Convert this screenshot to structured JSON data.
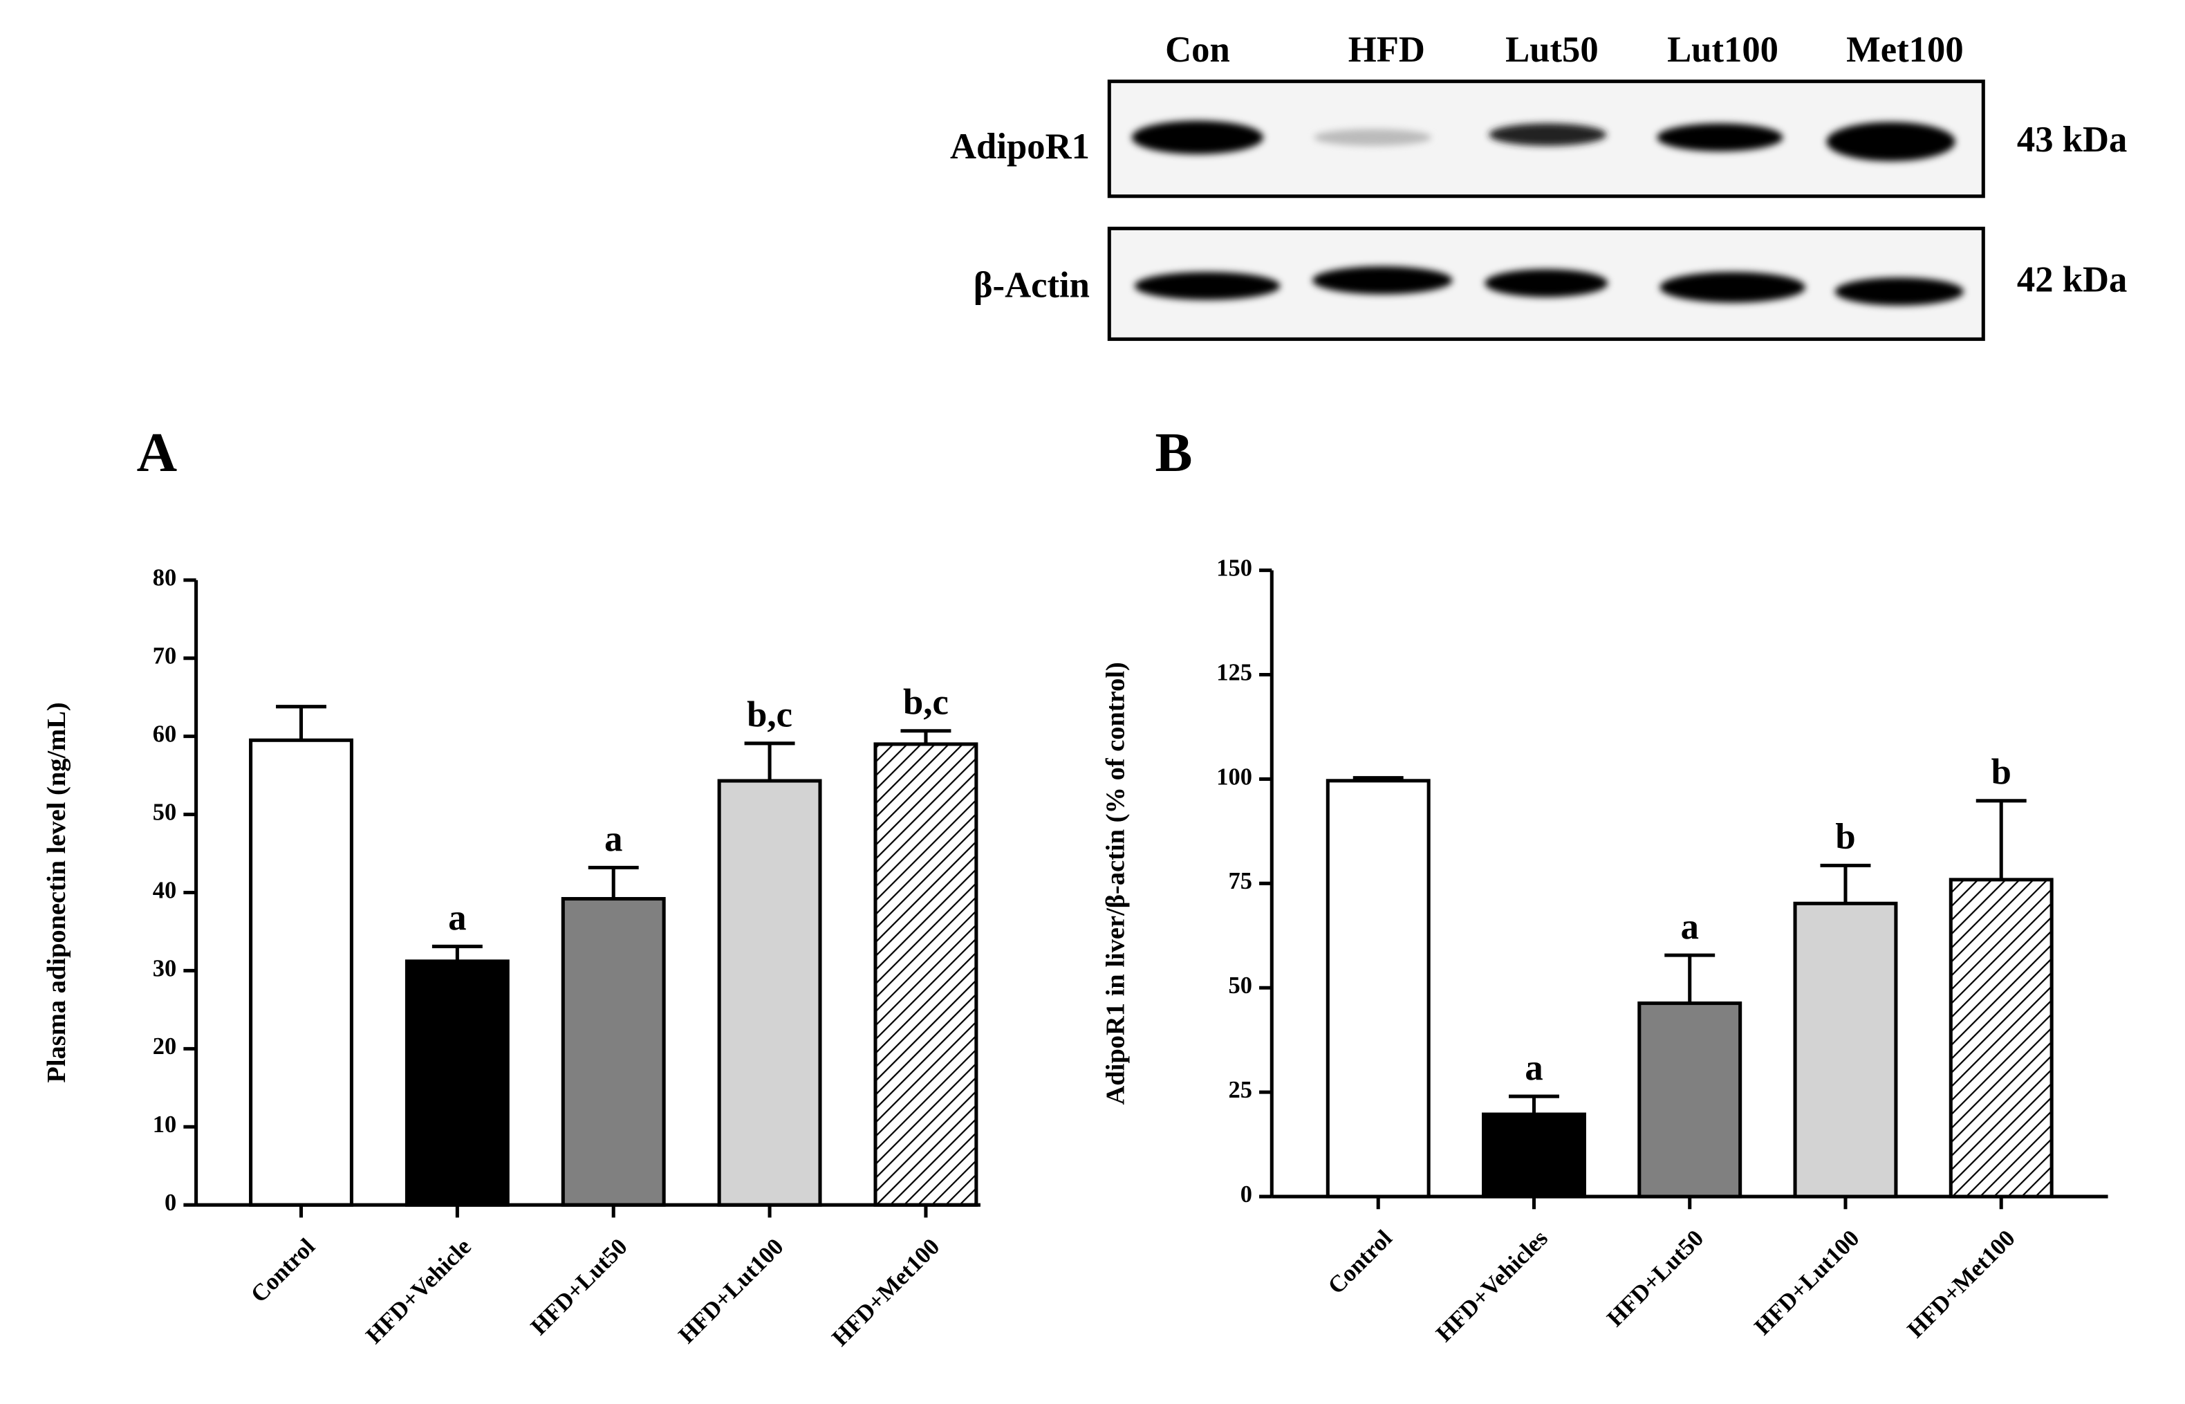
{
  "blot": {
    "lanes": [
      "Con",
      "HFD",
      "Lut50",
      "Lut100",
      "Met100"
    ],
    "rows": [
      {
        "label": "AdipoR1",
        "size": "43 kDa"
      },
      {
        "label": "β-Actin",
        "size": "42 kDa"
      }
    ]
  },
  "chart_data": [
    {
      "type": "bar",
      "panel": "A",
      "ylabel": "Plasma adiponectin level (ng/mL)",
      "categories": [
        "Control",
        "HFD+Vehicle",
        "HFD+Lut50",
        "HFD+Lut100",
        "HFD+Met100"
      ],
      "values": [
        59.5,
        31.2,
        39.2,
        54.3,
        59.0
      ],
      "errors": [
        4.3,
        1.9,
        4.0,
        4.8,
        1.7
      ],
      "labels": [
        null,
        "a",
        "a",
        "b,c",
        "b,c"
      ],
      "colors": [
        "#ffffff",
        "#000000",
        "#808080",
        "#d3d3d3",
        "#ffffff"
      ],
      "hatch": [
        false,
        false,
        false,
        false,
        true
      ],
      "ylim": [
        0,
        80
      ],
      "yticks": [
        0,
        10,
        20,
        30,
        40,
        50,
        60,
        70,
        80
      ]
    },
    {
      "type": "bar",
      "panel": "B",
      "ylabel": "AdipoR1 in liver/β-actin (% of control)",
      "categories": [
        "Control",
        "HFD+Vehicles",
        "HFD+Lut50",
        "HFD+Lut100",
        "HFD+Met100"
      ],
      "values": [
        99.6,
        19.7,
        46.3,
        70.2,
        75.9
      ],
      "errors": [
        0.7,
        4.3,
        11.5,
        9.1,
        18.9
      ],
      "labels": [
        null,
        "a",
        "a",
        "b",
        "b"
      ],
      "colors": [
        "#ffffff",
        "#000000",
        "#808080",
        "#d3d3d3",
        "#ffffff"
      ],
      "hatch": [
        false,
        false,
        false,
        false,
        true
      ],
      "ylim": [
        0,
        150
      ],
      "yticks": [
        0,
        25,
        50,
        75,
        100,
        125,
        150
      ]
    }
  ]
}
